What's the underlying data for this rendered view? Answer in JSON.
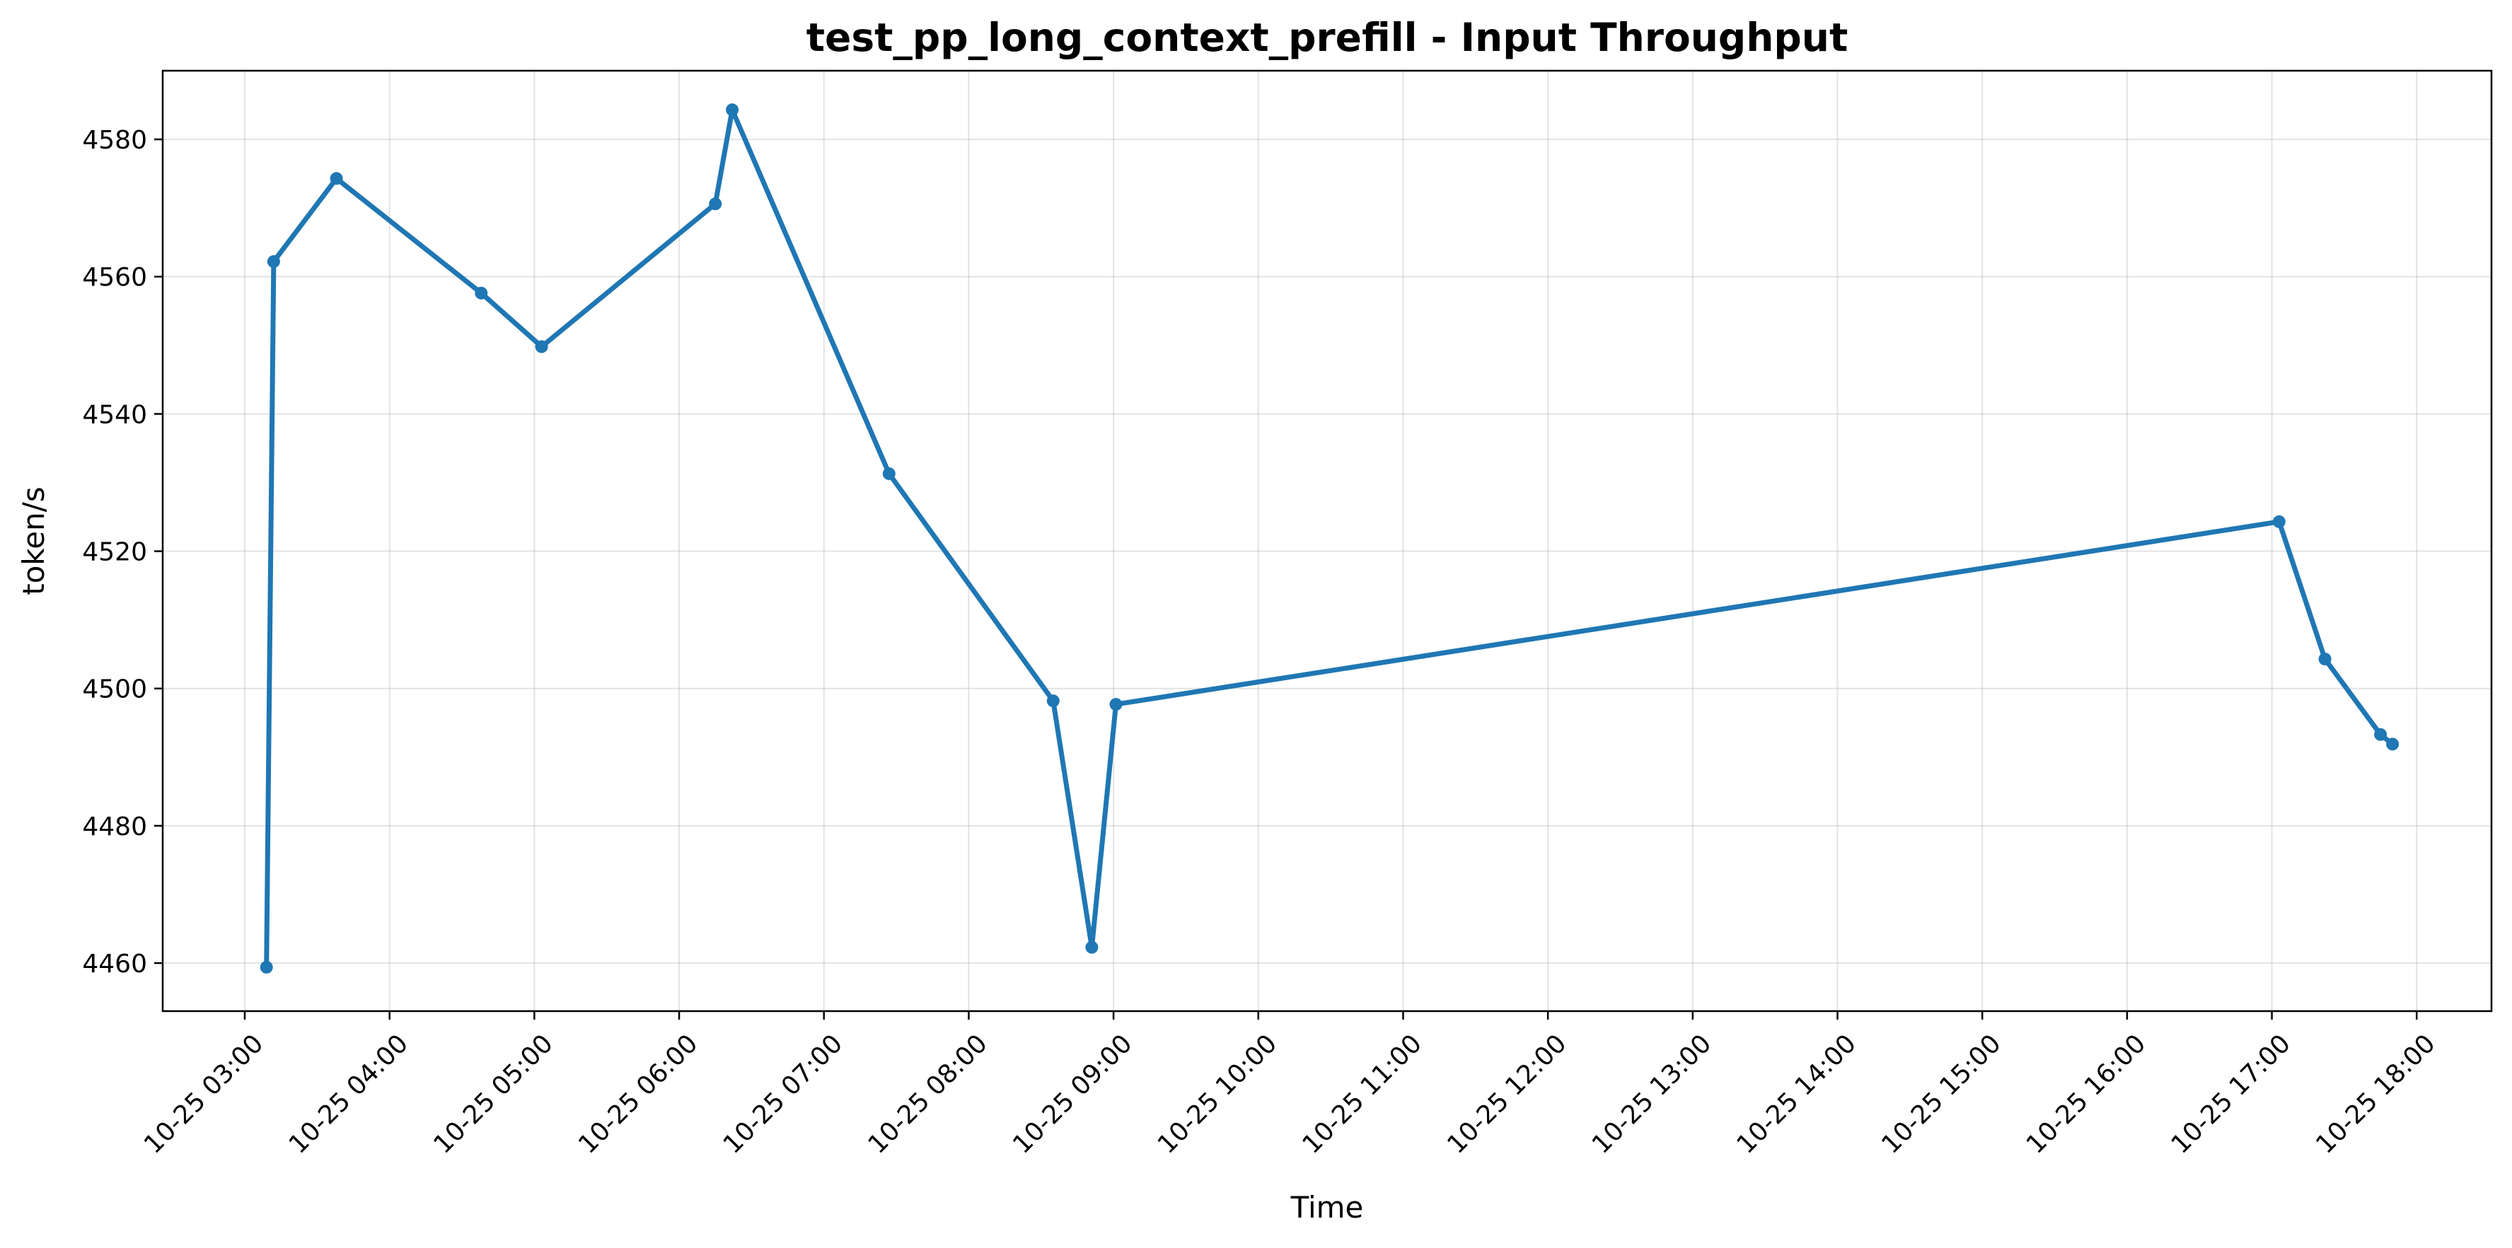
{
  "chart_data": {
    "type": "line",
    "title": "test_pp_long_context_prefill - Input Throughput",
    "xlabel": "Time",
    "ylabel": "token/s",
    "x_ticks": [
      "10-25 03:00",
      "10-25 04:00",
      "10-25 05:00",
      "10-25 06:00",
      "10-25 07:00",
      "10-25 08:00",
      "10-25 09:00",
      "10-25 10:00",
      "10-25 11:00",
      "10-25 12:00",
      "10-25 13:00",
      "10-25 14:00",
      "10-25 15:00",
      "10-25 16:00",
      "10-25 17:00",
      "10-25 18:00"
    ],
    "y_ticks": [
      4460,
      4480,
      4500,
      4520,
      4540,
      4560,
      4580
    ],
    "xlim": [
      "10-25 02:26",
      "10-25 18:31"
    ],
    "ylim": [
      4453,
      4590
    ],
    "grid": true,
    "series": [
      {
        "color": "#1f77b4",
        "points": [
          {
            "x": "10-25 03:09",
            "y": 4459.4
          },
          {
            "x": "10-25 03:12",
            "y": 4562.2
          },
          {
            "x": "10-25 03:38",
            "y": 4574.3
          },
          {
            "x": "10-25 04:38",
            "y": 4557.6
          },
          {
            "x": "10-25 05:03",
            "y": 4549.8
          },
          {
            "x": "10-25 06:15",
            "y": 4570.6
          },
          {
            "x": "10-25 06:22",
            "y": 4584.3
          },
          {
            "x": "10-25 07:27",
            "y": 4531.3
          },
          {
            "x": "10-25 08:35",
            "y": 4498.2
          },
          {
            "x": "10-25 08:51",
            "y": 4462.3
          },
          {
            "x": "10-25 09:01",
            "y": 4497.7
          },
          {
            "x": "10-25 17:03",
            "y": 4524.3
          },
          {
            "x": "10-25 17:22",
            "y": 4504.3
          },
          {
            "x": "10-25 17:45",
            "y": 4493.3
          },
          {
            "x": "10-25 17:50",
            "y": 4491.9
          }
        ]
      }
    ]
  }
}
